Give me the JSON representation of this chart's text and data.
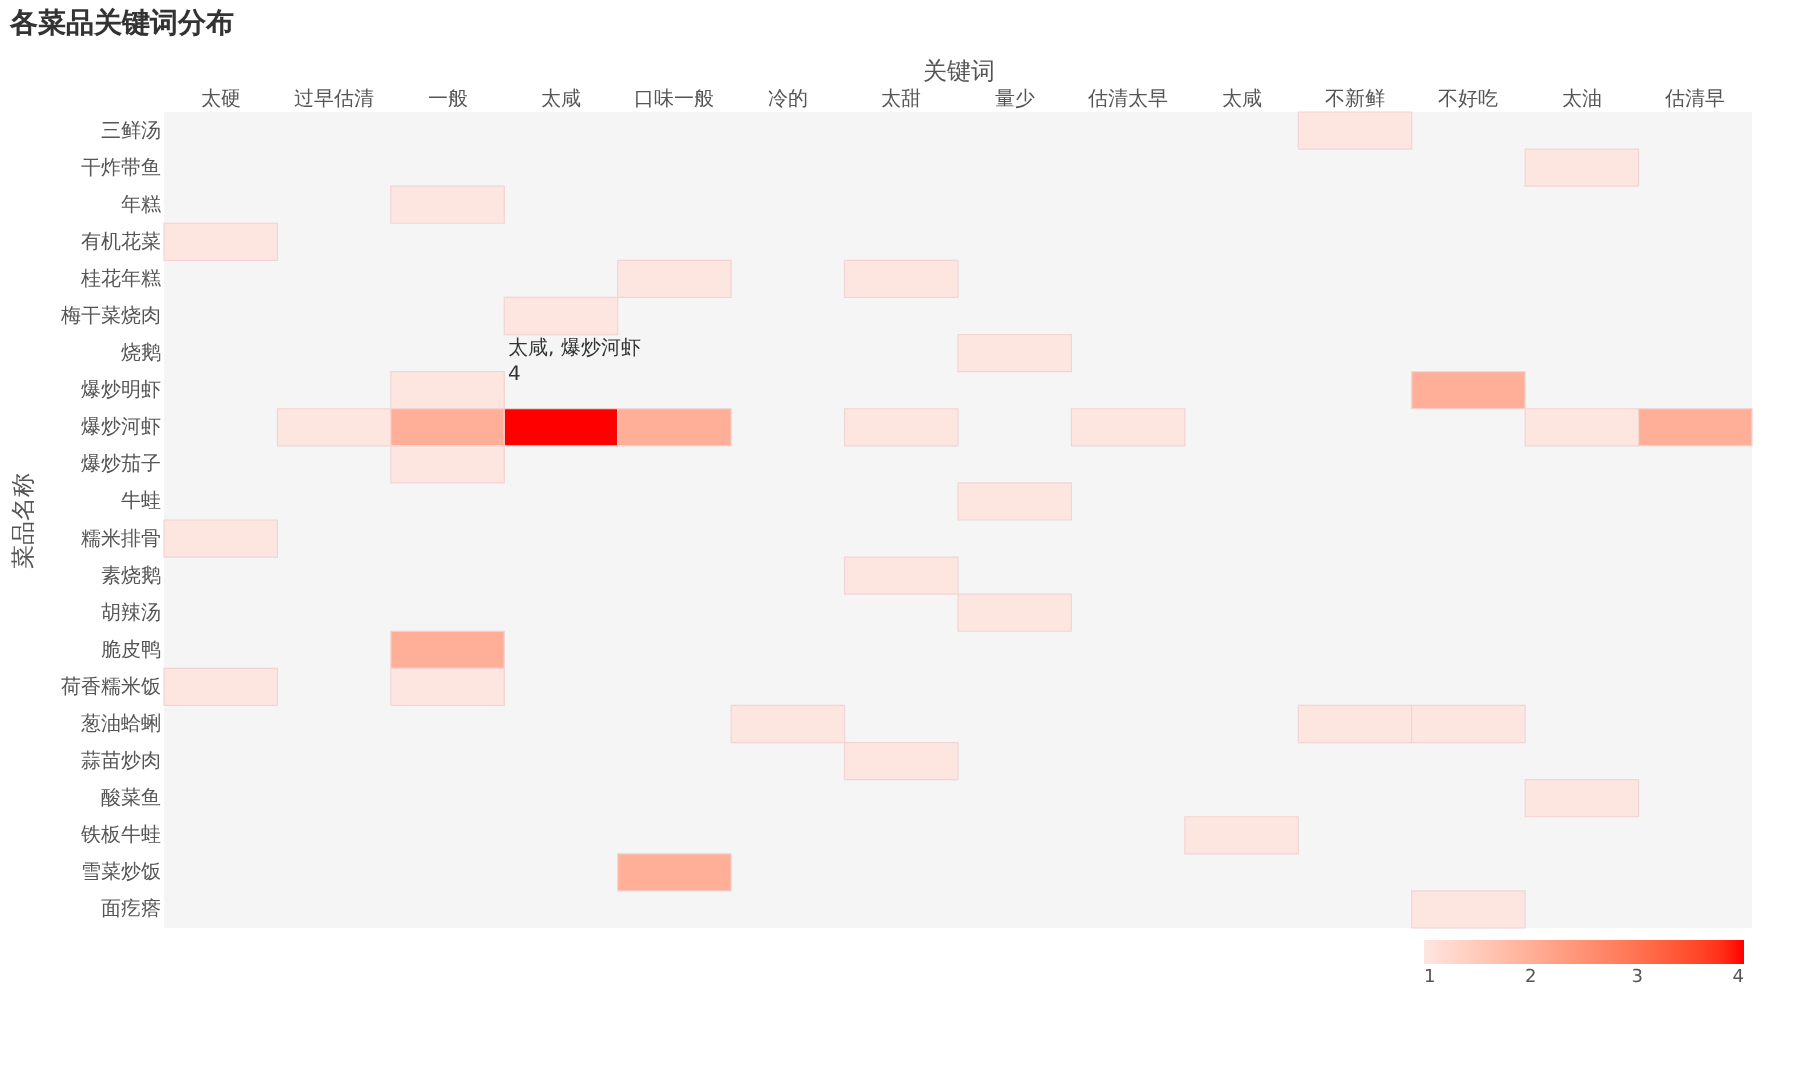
{
  "chart_data": {
    "type": "heatmap",
    "title": "各菜品关键词分布",
    "xlabel": "关键词",
    "ylabel": "菜品名称",
    "categories": [
      "太硬",
      "过早估清",
      "一般",
      "太咸",
      "口味一般",
      "冷的",
      "太甜",
      "量少",
      "估清太早",
      "太咸",
      "不新鲜",
      "不好吃",
      "太油",
      "估清早"
    ],
    "y_categories": [
      "三鲜汤",
      "干炸带鱼",
      "年糕",
      "有机花菜",
      "桂花年糕",
      "梅干菜烧肉",
      "烧鹅",
      "爆炒明虾",
      "爆炒河虾",
      "爆炒茄子",
      "牛蛙",
      "糯米排骨",
      "素烧鹅",
      "胡辣汤",
      "脆皮鸭",
      "荷香糯米饭",
      "葱油蛤蜊",
      "蒜苗炒肉",
      "酸菜鱼",
      "铁板牛蛙",
      "雪菜炒饭",
      "面疙瘩"
    ],
    "cells": [
      [
        null,
        null,
        null,
        null,
        null,
        null,
        null,
        null,
        null,
        null,
        1,
        null,
        null,
        null
      ],
      [
        null,
        null,
        null,
        null,
        null,
        null,
        null,
        null,
        null,
        null,
        null,
        null,
        1,
        null
      ],
      [
        null,
        null,
        1,
        null,
        null,
        null,
        null,
        null,
        null,
        null,
        null,
        null,
        null,
        null
      ],
      [
        1,
        null,
        null,
        null,
        null,
        null,
        null,
        null,
        null,
        null,
        null,
        null,
        null,
        null
      ],
      [
        null,
        null,
        null,
        null,
        1,
        null,
        1,
        null,
        null,
        null,
        null,
        null,
        null,
        null
      ],
      [
        null,
        null,
        null,
        1,
        null,
        null,
        null,
        null,
        null,
        null,
        null,
        null,
        null,
        null
      ],
      [
        null,
        null,
        null,
        null,
        null,
        null,
        null,
        1,
        null,
        null,
        null,
        null,
        null,
        null
      ],
      [
        null,
        null,
        1,
        null,
        null,
        null,
        null,
        null,
        null,
        null,
        null,
        2,
        null,
        null
      ],
      [
        null,
        1,
        2,
        4,
        2,
        null,
        1,
        null,
        1,
        null,
        null,
        null,
        1,
        2
      ],
      [
        null,
        null,
        1,
        null,
        null,
        null,
        null,
        null,
        null,
        null,
        null,
        null,
        null,
        null
      ],
      [
        null,
        null,
        null,
        null,
        null,
        null,
        null,
        1,
        null,
        null,
        null,
        null,
        null,
        null
      ],
      [
        1,
        null,
        null,
        null,
        null,
        null,
        null,
        null,
        null,
        null,
        null,
        null,
        null,
        null
      ],
      [
        null,
        null,
        null,
        null,
        null,
        null,
        1,
        null,
        null,
        null,
        null,
        null,
        null,
        null
      ],
      [
        null,
        null,
        null,
        null,
        null,
        null,
        null,
        1,
        null,
        null,
        null,
        null,
        null,
        null
      ],
      [
        null,
        null,
        2,
        null,
        null,
        null,
        null,
        null,
        null,
        null,
        null,
        null,
        null,
        null
      ],
      [
        1,
        null,
        1,
        null,
        null,
        null,
        null,
        null,
        null,
        null,
        null,
        null,
        null,
        null
      ],
      [
        null,
        null,
        null,
        null,
        null,
        1,
        null,
        null,
        null,
        null,
        1,
        1,
        null,
        null
      ],
      [
        null,
        null,
        null,
        null,
        null,
        null,
        1,
        null,
        null,
        null,
        null,
        null,
        null,
        null
      ],
      [
        null,
        null,
        null,
        null,
        null,
        null,
        null,
        null,
        null,
        null,
        null,
        null,
        1,
        null
      ],
      [
        null,
        null,
        null,
        null,
        null,
        null,
        null,
        null,
        null,
        1,
        null,
        null,
        null,
        null
      ],
      [
        null,
        null,
        null,
        null,
        2,
        null,
        null,
        null,
        null,
        null,
        null,
        null,
        null,
        null
      ],
      [
        null,
        null,
        null,
        null,
        null,
        null,
        null,
        null,
        null,
        null,
        null,
        1,
        null,
        null
      ]
    ],
    "clim": [
      1,
      4
    ],
    "cticks": [
      1,
      2,
      3,
      4
    ],
    "annotations": [
      "太咸, 爆炒河虾\n4"
    ]
  }
}
